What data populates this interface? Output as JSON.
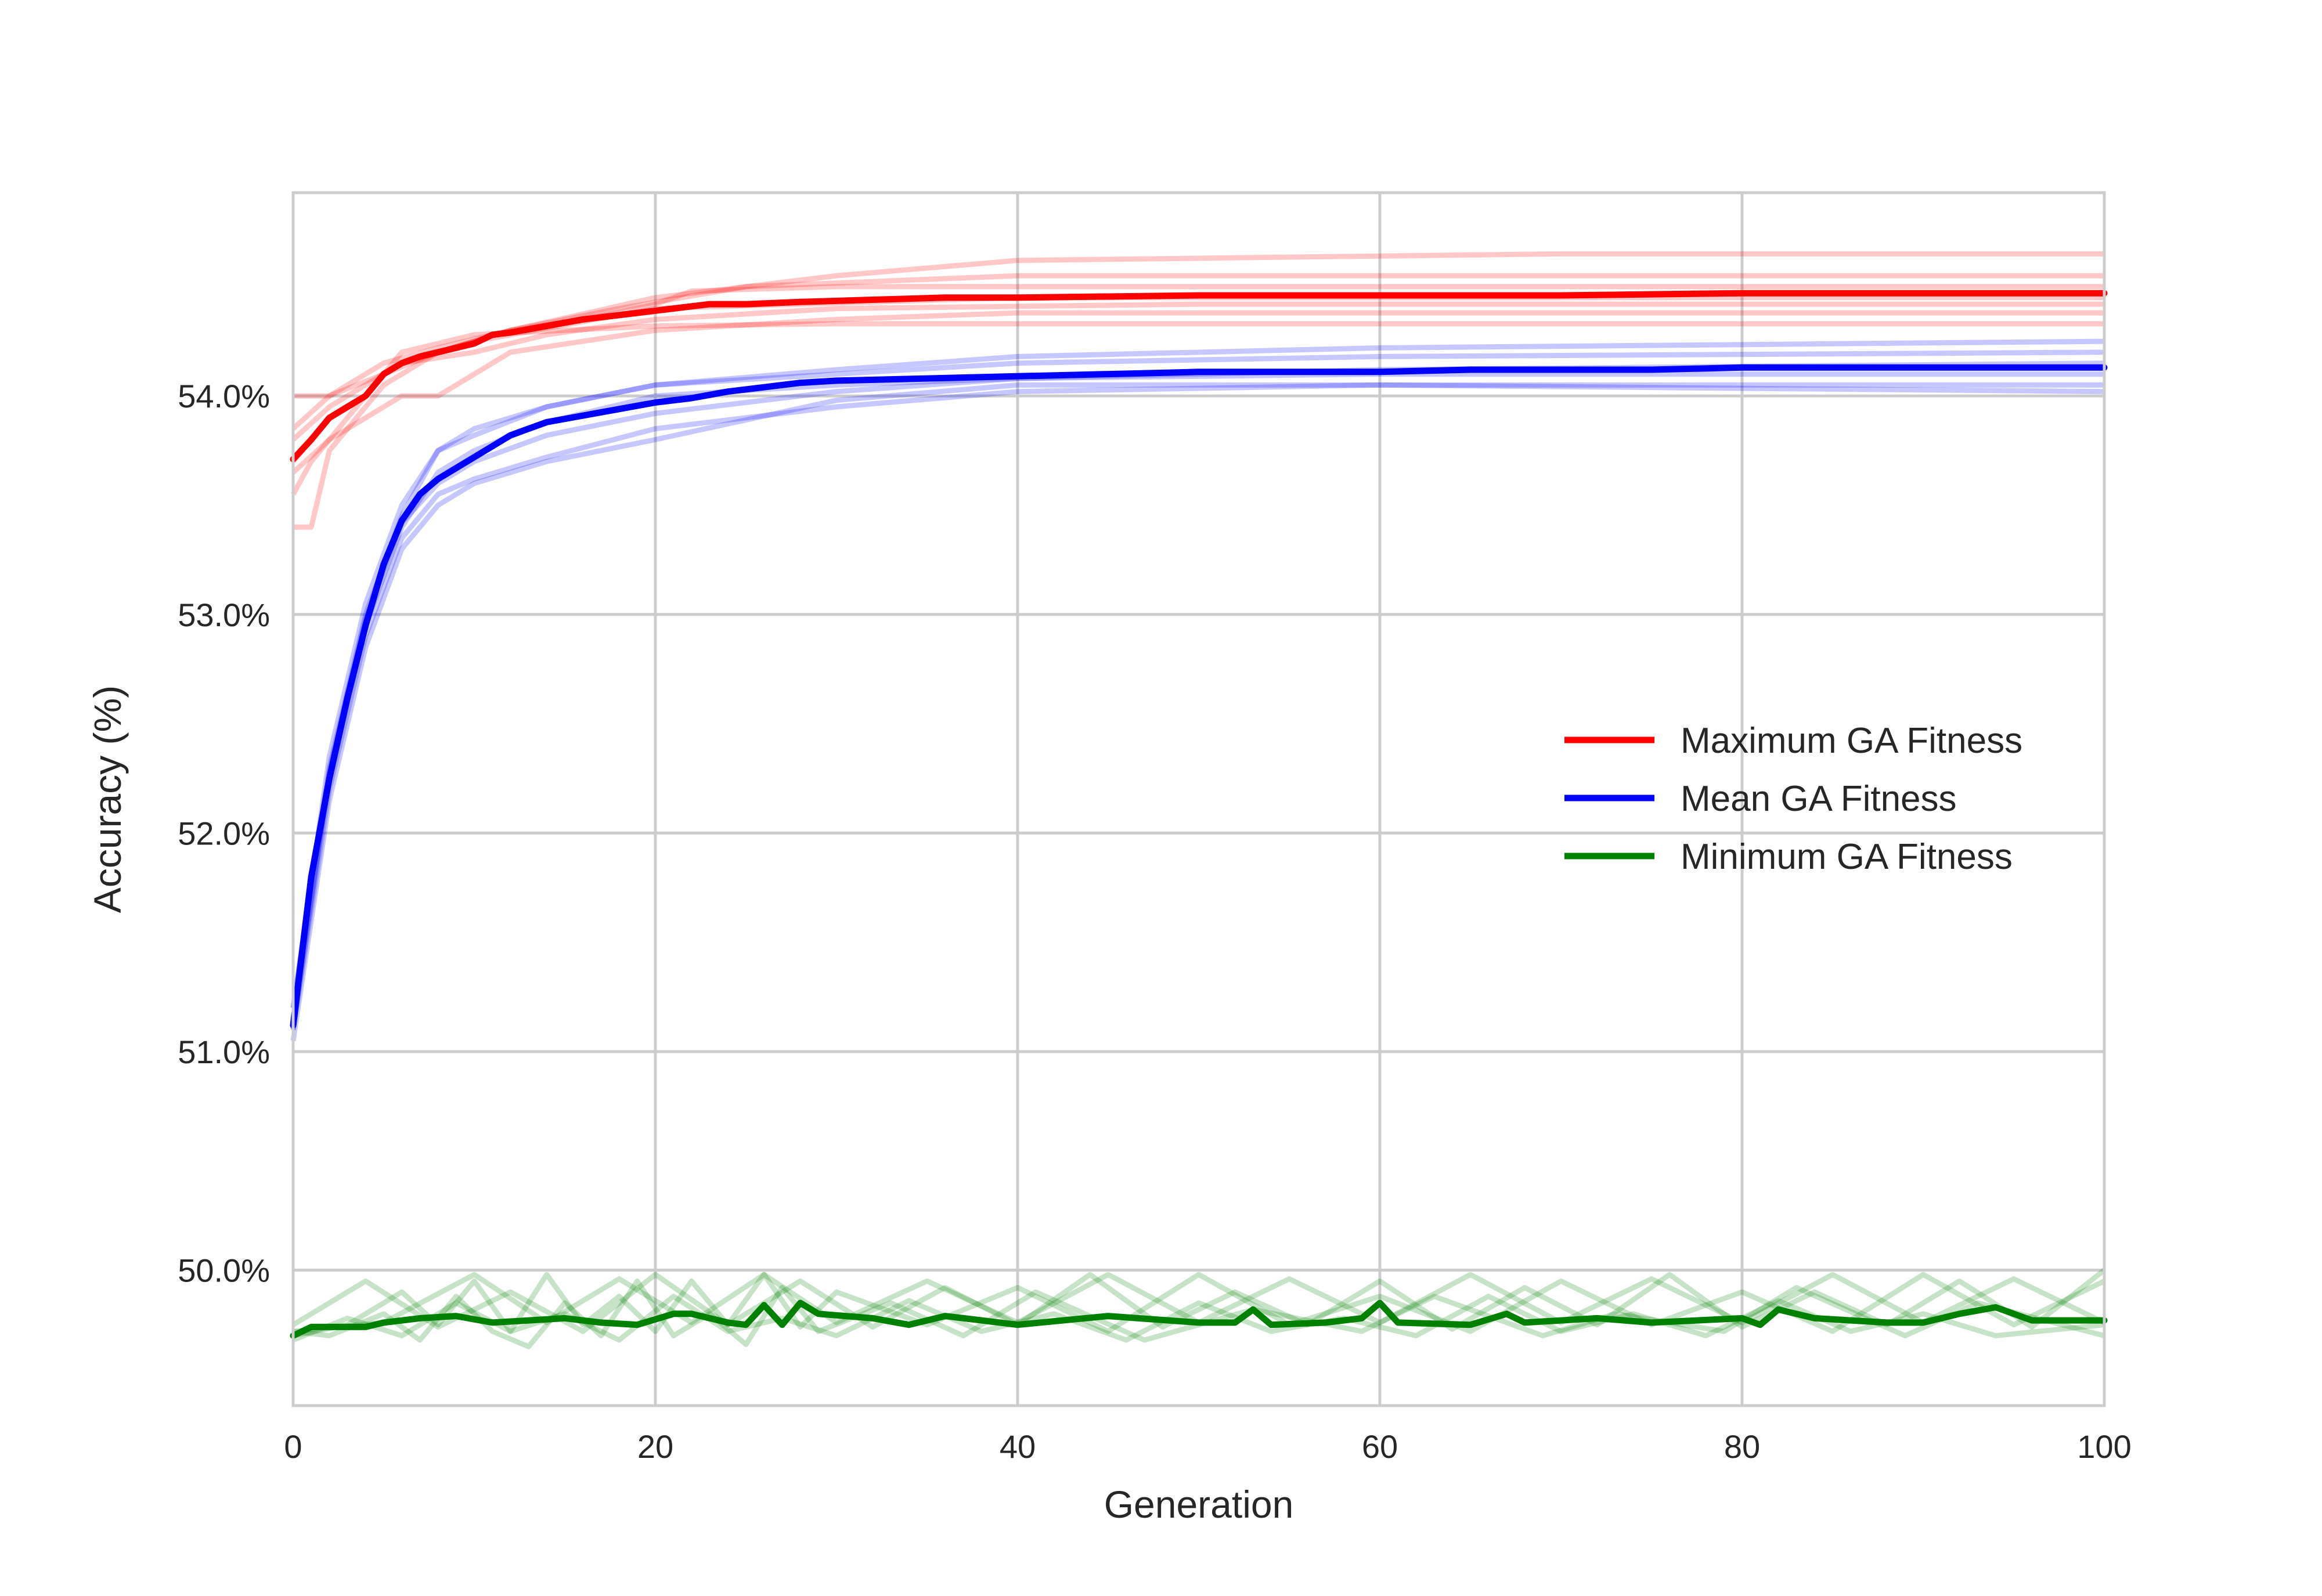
{
  "chart_data": {
    "type": "line",
    "xlabel": "Generation",
    "ylabel": "Accuracy (%)",
    "xlim": [
      0,
      100
    ],
    "ylim": [
      49.38,
      54.93
    ],
    "xticks": [
      0,
      20,
      40,
      60,
      80,
      100
    ],
    "xtick_labels": [
      "0",
      "20",
      "40",
      "60",
      "80",
      "100"
    ],
    "yticks": [
      50.0,
      51.0,
      52.0,
      53.0,
      54.0
    ],
    "ytick_labels": [
      "50.0%",
      "51.0%",
      "52.0%",
      "53.0%",
      "54.0%"
    ],
    "grid": true,
    "legend_position": "center-right",
    "series": [
      {
        "name": "Maximum GA Fitness",
        "color": "#ff0000",
        "x": [
          0,
          1,
          2,
          3,
          4,
          5,
          6,
          7,
          8,
          10,
          11,
          12,
          14,
          16,
          18,
          20,
          22,
          23,
          25,
          28,
          32,
          36,
          40,
          50,
          60,
          70,
          80,
          90,
          100
        ],
        "values": [
          53.71,
          53.8,
          53.9,
          53.95,
          54.0,
          54.1,
          54.15,
          54.18,
          54.2,
          54.24,
          54.28,
          54.29,
          54.32,
          54.35,
          54.37,
          54.39,
          54.41,
          54.42,
          54.42,
          54.43,
          54.44,
          54.45,
          54.45,
          54.46,
          54.46,
          54.46,
          54.47,
          54.47,
          54.47
        ],
        "runs": [
          {
            "x": [
              0,
              1,
              2,
              5,
              6,
              10,
              20,
              40,
              60,
              100
            ],
            "values": [
              54.0,
              54.0,
              54.0,
              54.1,
              54.15,
              54.25,
              54.4,
              54.45,
              54.45,
              54.45
            ]
          },
          {
            "x": [
              0,
              1,
              2,
              3,
              5,
              8,
              12,
              20,
              30,
              40,
              70,
              100
            ],
            "values": [
              53.4,
              53.4,
              53.75,
              53.85,
              54.05,
              54.2,
              54.3,
              54.45,
              54.55,
              54.62,
              54.65,
              54.65
            ]
          },
          {
            "x": [
              0,
              2,
              4,
              6,
              8,
              12,
              20,
              30,
              40,
              100
            ],
            "values": [
              53.65,
              53.8,
              53.9,
              54.0,
              54.0,
              54.2,
              54.3,
              54.35,
              54.38,
              54.38
            ]
          },
          {
            "x": [
              0,
              2,
              4,
              6,
              10,
              14,
              20,
              30,
              50,
              100
            ],
            "values": [
              53.8,
              53.95,
              54.05,
              54.15,
              54.2,
              54.28,
              54.35,
              54.4,
              54.42,
              54.42
            ]
          },
          {
            "x": [
              0,
              1,
              3,
              5,
              8,
              12,
              16,
              20,
              22,
              30,
              40,
              100
            ],
            "values": [
              53.55,
              53.7,
              53.9,
              54.1,
              54.2,
              54.3,
              54.35,
              54.42,
              54.48,
              54.5,
              54.5,
              54.5
            ]
          },
          {
            "x": [
              0,
              2,
              4,
              6,
              10,
              15,
              20,
              30,
              60,
              100
            ],
            "values": [
              53.7,
              53.9,
              54.0,
              54.2,
              54.28,
              54.3,
              54.32,
              54.33,
              54.33,
              54.33
            ]
          },
          {
            "x": [
              0,
              2,
              5,
              8,
              12,
              18,
              25,
              40,
              100
            ],
            "values": [
              53.85,
              54.0,
              54.15,
              54.22,
              54.3,
              54.4,
              54.5,
              54.55,
              54.55
            ]
          }
        ]
      },
      {
        "name": "Mean GA Fitness",
        "color": "#0000ff",
        "x": [
          0,
          1,
          2,
          3,
          4,
          5,
          6,
          7,
          8,
          10,
          12,
          14,
          16,
          18,
          20,
          22,
          24,
          26,
          28,
          30,
          35,
          40,
          45,
          50,
          55,
          60,
          65,
          70,
          75,
          80,
          85,
          90,
          95,
          100
        ],
        "values": [
          51.12,
          51.8,
          52.25,
          52.62,
          52.95,
          53.23,
          53.43,
          53.55,
          53.62,
          53.72,
          53.82,
          53.88,
          53.91,
          53.94,
          53.97,
          53.99,
          54.02,
          54.04,
          54.06,
          54.07,
          54.08,
          54.09,
          54.1,
          54.11,
          54.11,
          54.11,
          54.12,
          54.12,
          54.12,
          54.13,
          54.13,
          54.13,
          54.13,
          54.13
        ],
        "runs": [
          {
            "x": [
              0,
              2,
              4,
              6,
              8,
              10,
              14,
              20,
              30,
              40,
              60,
              100
            ],
            "values": [
              51.2,
              52.3,
              53.0,
              53.45,
              53.75,
              53.82,
              53.95,
              54.05,
              54.1,
              54.15,
              54.18,
              54.2
            ]
          },
          {
            "x": [
              0,
              2,
              4,
              6,
              8,
              10,
              14,
              20,
              30,
              40,
              60,
              100
            ],
            "values": [
              51.1,
              52.2,
              52.9,
              53.35,
              53.55,
              53.62,
              53.72,
              53.85,
              53.95,
              54.02,
              54.05,
              54.05
            ]
          },
          {
            "x": [
              0,
              2,
              4,
              6,
              8,
              10,
              14,
              20,
              30,
              40,
              60,
              100
            ],
            "values": [
              51.15,
              52.25,
              52.95,
              53.4,
              53.65,
              53.75,
              53.88,
              54.0,
              54.05,
              54.08,
              54.12,
              54.15
            ]
          },
          {
            "x": [
              0,
              2,
              4,
              6,
              8,
              10,
              14,
              20,
              30,
              40,
              60,
              100
            ],
            "values": [
              51.05,
              52.15,
              52.85,
              53.3,
              53.5,
              53.6,
              53.7,
              53.8,
              53.98,
              54.05,
              54.05,
              54.02
            ]
          },
          {
            "x": [
              0,
              2,
              4,
              6,
              8,
              10,
              14,
              20,
              30,
              40,
              60,
              100
            ],
            "values": [
              51.2,
              52.35,
              53.05,
              53.5,
              53.75,
              53.85,
              53.95,
              54.05,
              54.12,
              54.18,
              54.22,
              54.25
            ]
          },
          {
            "x": [
              0,
              2,
              4,
              6,
              8,
              10,
              14,
              20,
              30,
              40,
              60,
              100
            ],
            "values": [
              51.1,
              52.28,
              52.98,
              53.42,
              53.6,
              53.7,
              53.82,
              53.92,
              54.02,
              54.08,
              54.1,
              54.1
            ]
          }
        ]
      },
      {
        "name": "Minimum GA Fitness",
        "color": "#008000",
        "x": [
          0,
          1,
          4,
          5,
          7,
          9,
          11,
          15,
          17,
          19,
          21,
          22,
          24,
          25,
          26,
          27,
          28,
          29,
          32,
          34,
          36,
          38,
          40,
          45,
          50,
          52,
          53,
          54,
          57,
          59,
          60,
          61,
          65,
          67,
          68,
          72,
          75,
          80,
          81,
          82,
          84,
          88,
          90,
          92,
          94,
          96,
          100
        ],
        "values": [
          49.7,
          49.74,
          49.74,
          49.76,
          49.78,
          49.79,
          49.76,
          49.78,
          49.76,
          49.75,
          49.8,
          49.8,
          49.76,
          49.75,
          49.84,
          49.75,
          49.85,
          49.8,
          49.78,
          49.75,
          49.79,
          49.77,
          49.75,
          49.79,
          49.76,
          49.76,
          49.82,
          49.75,
          49.76,
          49.78,
          49.85,
          49.76,
          49.75,
          49.8,
          49.76,
          49.78,
          49.76,
          49.78,
          49.75,
          49.82,
          49.78,
          49.76,
          49.76,
          49.8,
          49.83,
          49.77,
          49.77
        ],
        "runs": [
          {
            "x": [
              0,
              3,
              6,
              8,
              10,
              12,
              14,
              16,
              18,
              20,
              22,
              24,
              26,
              28,
              30,
              35,
              40,
              45,
              50,
              55,
              60,
              65,
              70,
              75,
              80,
              85,
              90,
              95,
              100
            ],
            "values": [
              49.7,
              49.75,
              49.9,
              49.75,
              49.95,
              49.72,
              49.98,
              49.75,
              49.88,
              49.72,
              49.95,
              49.75,
              49.98,
              49.74,
              49.9,
              49.75,
              49.92,
              49.72,
              49.98,
              49.75,
              49.88,
              49.72,
              49.95,
              49.75,
              49.9,
              49.72,
              49.98,
              49.75,
              49.95
            ]
          },
          {
            "x": [
              0,
              2,
              5,
              7,
              9,
              11,
              13,
              15,
              17,
              19,
              21,
              23,
              25,
              27,
              29,
              33,
              37,
              41,
              47,
              53,
              59,
              63,
              69,
              73,
              79,
              83,
              89,
              93,
              100
            ],
            "values": [
              49.72,
              49.7,
              49.8,
              49.68,
              49.88,
              49.72,
              49.65,
              49.85,
              49.7,
              49.95,
              49.7,
              49.8,
              49.66,
              49.92,
              49.72,
              49.85,
              49.7,
              49.9,
              49.68,
              49.82,
              49.72,
              49.88,
              49.7,
              49.8,
              49.72,
              49.92,
              49.7,
              49.85,
              49.7
            ]
          },
          {
            "x": [
              0,
              4,
              8,
              12,
              16,
              20,
              24,
              28,
              32,
              36,
              40,
              44,
              48,
              52,
              56,
              60,
              64,
              68,
              72,
              76,
              80,
              84,
              88,
              92,
              96,
              100
            ],
            "values": [
              49.75,
              49.95,
              49.74,
              49.9,
              49.72,
              49.98,
              49.75,
              49.95,
              49.74,
              49.92,
              49.75,
              49.98,
              49.74,
              49.9,
              49.75,
              49.95,
              49.73,
              49.92,
              49.75,
              49.98,
              49.74,
              49.9,
              49.75,
              49.95,
              49.74,
              50.0
            ]
          },
          {
            "x": [
              0,
              3,
              6,
              9,
              12,
              15,
              18,
              21,
              24,
              27,
              30,
              34,
              38,
              42,
              46,
              50,
              54,
              58,
              62,
              66,
              70,
              74,
              78,
              82,
              86,
              90,
              94,
              100
            ],
            "values": [
              49.68,
              49.78,
              49.7,
              49.85,
              49.72,
              49.8,
              49.68,
              49.88,
              49.72,
              49.78,
              49.7,
              49.86,
              49.72,
              49.8,
              49.68,
              49.85,
              49.72,
              49.78,
              49.7,
              49.88,
              49.72,
              49.8,
              49.7,
              49.86,
              49.72,
              49.8,
              49.7,
              49.75
            ]
          },
          {
            "x": [
              0,
              5,
              10,
              14,
              18,
              22,
              26,
              30,
              35,
              40,
              45,
              50,
              55,
              60,
              65,
              70,
              75,
              80,
              85,
              90,
              95,
              100
            ],
            "values": [
              49.72,
              49.76,
              49.98,
              49.76,
              49.96,
              49.76,
              49.98,
              49.76,
              49.95,
              49.76,
              49.98,
              49.76,
              49.96,
              49.76,
              49.98,
              49.76,
              49.96,
              49.76,
              49.98,
              49.76,
              49.96,
              49.76
            ]
          }
        ]
      }
    ]
  }
}
